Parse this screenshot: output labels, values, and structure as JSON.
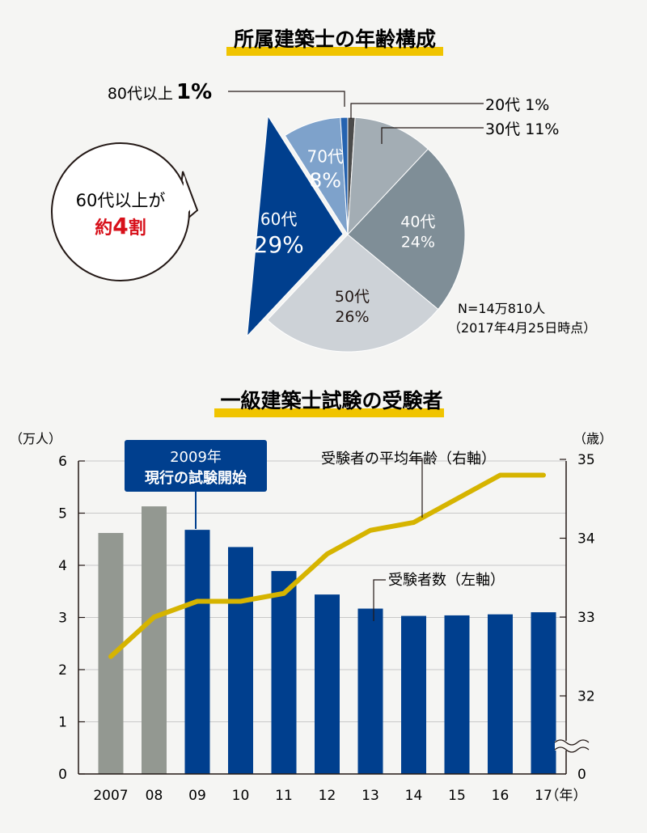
{
  "colors": {
    "background": "#f5f5f3",
    "title_underline": "#f0c400",
    "highlight_red": "#d7101a",
    "line_gold": "#d6b400",
    "bar_blue": "#003f8e",
    "bar_gray": "#939891"
  },
  "chart_data": [
    {
      "type": "pie",
      "title": "所属建築士の年齢構成",
      "slices": [
        {
          "label": "20代",
          "pct_text": "1%",
          "value": 1,
          "color": "#4b4b4b"
        },
        {
          "label": "30代",
          "pct_text": "11%",
          "value": 11,
          "color": "#a3adb4"
        },
        {
          "label": "40代",
          "pct_text": "24%",
          "value": 24,
          "color": "#7f8e97"
        },
        {
          "label": "50代",
          "pct_text": "26%",
          "value": 26,
          "color": "#cdd2d7"
        },
        {
          "label": "60代",
          "pct_text": "29%",
          "value": 29,
          "color": "#003f8e",
          "exploded": true
        },
        {
          "label": "70代",
          "pct_text": "8%",
          "value": 8,
          "color": "#7ea2cb"
        },
        {
          "label": "80代以上",
          "pct_text": "1%",
          "value": 1,
          "color": "#2563b0"
        }
      ],
      "callouts": {
        "s80": {
          "label": "80代以上",
          "pct": "1%"
        },
        "s20": "20代 1%",
        "s30": "30代 11%"
      },
      "bubble": {
        "line1": "60代以上が",
        "line2_prefix": "約",
        "line2_number": "4",
        "line2_suffix": "割"
      },
      "note": {
        "n": "N=14万810人",
        "date": "（2017年4月25日時点）"
      }
    },
    {
      "type": "bar+line",
      "title": "一級建築士試験の受験者",
      "categories": [
        "2007",
        "08",
        "09",
        "10",
        "11",
        "12",
        "13",
        "14",
        "15",
        "16",
        "17"
      ],
      "xunit": "（年）",
      "series": [
        {
          "name": "受験者数（左軸）",
          "axis": "left",
          "values": [
            4.62,
            5.13,
            4.68,
            4.35,
            3.89,
            3.44,
            3.17,
            3.03,
            3.04,
            3.06,
            3.1
          ],
          "highlight_from_index": 2
        },
        {
          "name": "受験者の平均年齢（右軸）",
          "axis": "right",
          "values": [
            32.5,
            33.0,
            33.2,
            33.2,
            33.3,
            33.8,
            34.1,
            34.2,
            34.5,
            34.8,
            34.8
          ]
        }
      ],
      "left_axis": {
        "unit": "（万人）",
        "ticks": [
          "0",
          "1",
          "2",
          "3",
          "4",
          "5",
          "6"
        ],
        "ylim": [
          0,
          6
        ]
      },
      "right_axis": {
        "unit": "（歳）",
        "ticks": [
          "32",
          "33",
          "34",
          "35"
        ],
        "ylim": [
          31.5,
          35
        ],
        "zero_label": "0"
      },
      "annotation": {
        "line1": "2009年",
        "line2": "現行の試験開始"
      }
    }
  ]
}
